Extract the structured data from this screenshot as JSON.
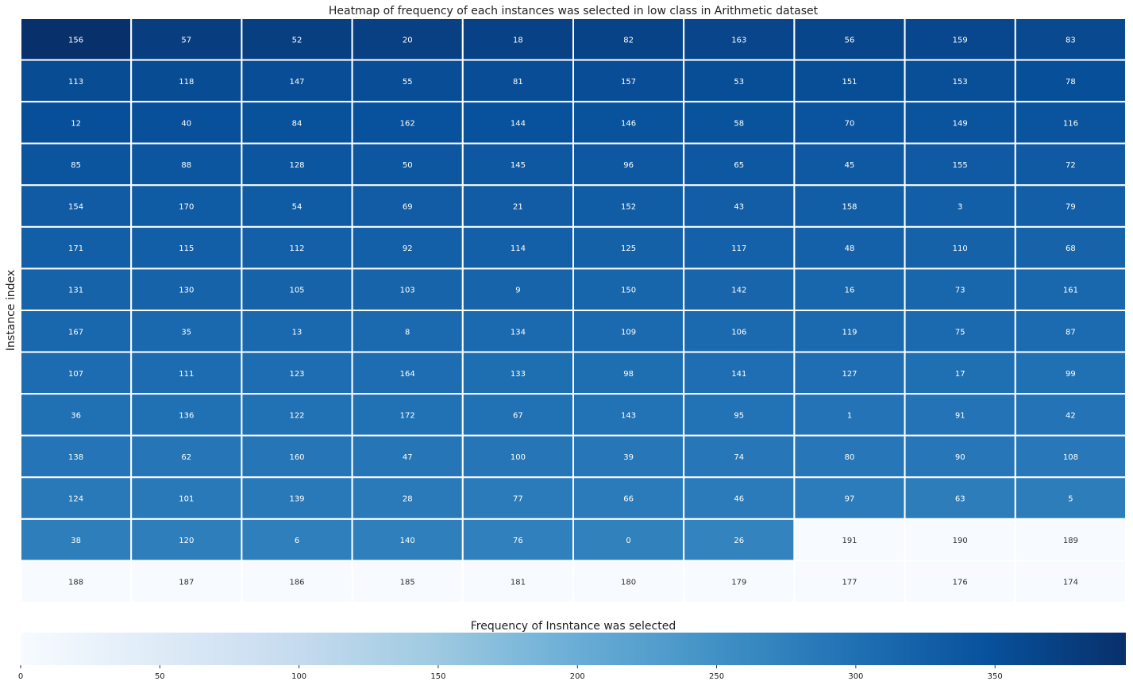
{
  "chart_data": {
    "type": "heatmap",
    "title": "Heatmap of frequency of each instances was selected in low class in Arithmetic dataset",
    "ylabel": "Instance index",
    "colorbar_label": "Frequency of Insntance was selected",
    "colormap": "Blues",
    "colorbar_ticks": [
      0,
      50,
      100,
      150,
      200,
      250,
      300,
      350
    ],
    "color_range": [
      0,
      397
    ],
    "grid": true,
    "labels": [
      [
        156,
        57,
        52,
        20,
        18,
        82,
        163,
        56,
        159,
        83
      ],
      [
        113,
        118,
        147,
        55,
        81,
        157,
        53,
        151,
        153,
        78
      ],
      [
        12,
        40,
        84,
        162,
        144,
        146,
        58,
        70,
        149,
        116
      ],
      [
        85,
        88,
        128,
        50,
        145,
        96,
        65,
        45,
        155,
        72
      ],
      [
        154,
        170,
        54,
        69,
        21,
        152,
        43,
        158,
        3,
        79
      ],
      [
        171,
        115,
        112,
        92,
        114,
        125,
        117,
        48,
        110,
        68
      ],
      [
        131,
        130,
        105,
        103,
        9,
        150,
        142,
        16,
        73,
        161
      ],
      [
        167,
        35,
        13,
        8,
        134,
        109,
        106,
        119,
        75,
        87
      ],
      [
        107,
        111,
        123,
        164,
        133,
        98,
        141,
        127,
        17,
        99
      ],
      [
        36,
        136,
        122,
        172,
        67,
        143,
        95,
        1,
        91,
        42
      ],
      [
        138,
        62,
        160,
        47,
        100,
        39,
        74,
        80,
        90,
        108
      ],
      [
        124,
        101,
        139,
        28,
        77,
        66,
        46,
        97,
        63,
        5
      ],
      [
        38,
        120,
        6,
        140,
        76,
        0,
        26,
        191,
        190,
        189
      ],
      [
        188,
        187,
        186,
        185,
        181,
        180,
        179,
        177,
        176,
        174
      ]
    ],
    "values": [
      [
        397,
        376,
        375,
        373,
        371,
        369,
        366,
        364,
        362,
        360
      ],
      [
        355,
        355,
        354,
        354,
        353,
        353,
        352,
        352,
        351,
        350
      ],
      [
        350,
        349,
        348,
        347,
        347,
        345,
        345,
        344,
        343,
        343
      ],
      [
        341,
        340,
        339,
        338,
        337,
        336,
        336,
        335,
        334,
        333
      ],
      [
        332,
        331,
        331,
        330,
        330,
        329,
        328,
        327,
        326,
        326
      ],
      [
        325,
        325,
        324,
        324,
        324,
        323,
        322,
        322,
        321,
        320
      ],
      [
        320,
        320,
        319,
        318,
        318,
        317,
        316,
        315,
        315,
        314
      ],
      [
        313,
        312,
        311,
        310,
        310,
        310,
        309,
        309,
        309,
        307
      ],
      [
        306,
        306,
        304,
        304,
        303,
        303,
        302,
        302,
        301,
        300
      ],
      [
        300,
        299,
        298,
        298,
        297,
        296,
        296,
        295,
        294,
        294
      ],
      [
        293,
        292,
        292,
        291,
        291,
        290,
        290,
        289,
        288,
        287
      ],
      [
        286,
        285,
        285,
        284,
        283,
        283,
        282,
        281,
        280,
        279
      ],
      [
        278,
        278,
        277,
        276,
        275,
        274,
        270,
        0,
        0,
        0
      ],
      [
        0,
        0,
        0,
        0,
        0,
        0,
        0,
        0,
        0,
        0
      ]
    ]
  }
}
